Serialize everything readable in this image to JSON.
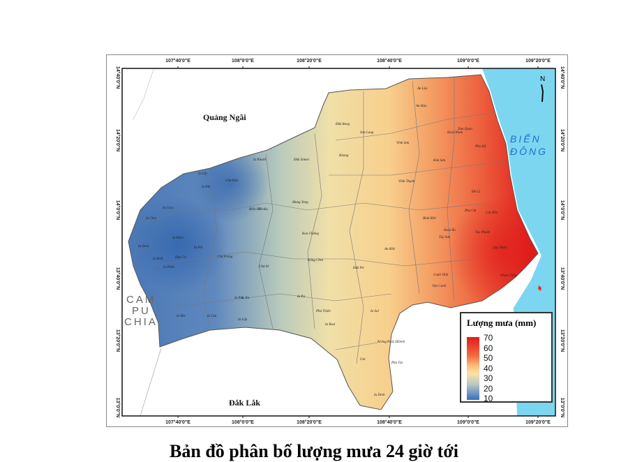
{
  "map": {
    "lon_ticks": [
      "107°40'0\"E",
      "108°0'0\"E",
      "108°20'0\"E",
      "108°40'0\"E",
      "109°0'0\"E",
      "109°20'0\"E"
    ],
    "lat_ticks": [
      "14°40'0\"N",
      "14°20'0\"N",
      "14°0'0\"N",
      "13°40'0\"N",
      "13°20'0\"N",
      "13°0'0\"N"
    ],
    "neighbors": {
      "north": "Quảng Ngãi",
      "south": "Đắk Lắk",
      "west_line1": "CAM",
      "west_line2": "PU",
      "west_line3": "CHIA"
    },
    "sea": {
      "line1": "BIỂN",
      "line2": "ĐÔNG"
    },
    "north_arrow": "N",
    "districts": [
      "Ia Lếp",
      "Ia Phí",
      "Chư Păh",
      "Ia Khươl",
      "Đăk Sơmei",
      "Đăk Rong",
      "Sơn Lang",
      "Vĩnh Sơn",
      "An Lão",
      "An Hảo",
      "Kbang",
      "Ia Grai",
      "Ia Chia",
      "Ia Dom",
      "Ia Krêl",
      "Ia Pnôn",
      "Đức Cơ",
      "Ia Pết",
      "Chư Prông",
      "Ia Púch",
      "Ia Mơ",
      "Ia Lâu",
      "Ia Lốp",
      "Ia Pia",
      "Pleiku",
      "Biển Hồ",
      "Chư Sê",
      "Ia Ko",
      "Ia Pa",
      "Phú Thiện",
      "Ia Sol",
      "Ia Rsai",
      "Krông Pa",
      "Kông Chro",
      "Đak Pơ",
      "An Khê",
      "Mang Yang",
      "Kon Chiêng",
      "Vân Canh",
      "Canh Vinh",
      "Tây Sơn",
      "Bình Khê",
      "Hoài Nhơn",
      "Tam Quan",
      "Phù Mỹ",
      "Phù Cát",
      "Tuy Phước",
      "Quy Nhơn",
      "Nhơn Châu",
      "Hoài Ân",
      "Vĩnh Thạnh",
      "Kim Sơn",
      "Đề Gi",
      "Cát Tiến",
      "Uar",
      "Phú Túc",
      "Ia Dreh",
      "Ia HDreh"
    ],
    "caption": "Bản đồ phân bố lượng mưa 24 giờ tới"
  },
  "legend": {
    "title": "Lượng mưa (mm)",
    "values": [
      "70",
      "60",
      "50",
      "40",
      "30",
      "20",
      "10"
    ],
    "colors": {
      "high": "#e31a1c",
      "mid": "#f8e3a8",
      "low": "#3b6fb6"
    }
  },
  "colors": {
    "sea": "#7dd6f0",
    "border": "#666666"
  }
}
